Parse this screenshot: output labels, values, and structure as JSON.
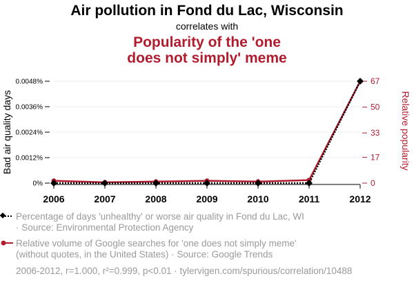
{
  "header": {
    "title": "Air pollution in Fond du Lac, Wisconsin",
    "subtitle": "correlates with",
    "title2_line1": "Popularity of the 'one",
    "title2_line2": "does not simply' meme"
  },
  "colors": {
    "series1": "#000000",
    "series2": "#b01c2e",
    "muted": "#9a9a9a",
    "grid": "#eeeeee"
  },
  "chart_data": {
    "type": "line",
    "x": [
      2006,
      2007,
      2008,
      2009,
      2010,
      2011,
      2012
    ],
    "x_tick_labels": [
      "2006",
      "2007",
      "2008",
      "2009",
      "2010",
      "2011",
      "2012"
    ],
    "ylabel_left": "Bad air quality days",
    "ylabel_right": "Relative popularity",
    "ylim_left": [
      0,
      0.0048
    ],
    "ylim_right": [
      0,
      67
    ],
    "yticks_left": [
      0,
      0.0012,
      0.0024,
      0.0036,
      0.0048
    ],
    "yticks_left_labels": [
      "0%",
      "0.0012%",
      "0.0024%",
      "0.0036%",
      "0.0048%"
    ],
    "yticks_right": [
      0,
      17,
      33,
      50,
      67
    ],
    "yticks_right_labels": [
      "0",
      "17",
      "33",
      "50",
      "67"
    ],
    "grid": true,
    "series": [
      {
        "axis": "left",
        "values": [
          0,
          0,
          0,
          0,
          0,
          0,
          0.0048
        ],
        "legend_line1": "Percentage of days 'unhealthy' or worse air quality in Fond du Lac, WI",
        "legend_line2": " · Source: Environmental Protection Agency"
      },
      {
        "axis": "right",
        "values": [
          1.5,
          0.5,
          1,
          1.5,
          1,
          2,
          67
        ],
        "legend_line1": "Relative volume of Google searches for 'one does not simply meme'",
        "legend_line2": "(without quotes, in the United States) · Source: Google Trends"
      }
    ]
  },
  "footer": "2006-2012, r=1.000, r²=0.999, p<0.01 · tylervigen.com/spurious/correlation/10488"
}
